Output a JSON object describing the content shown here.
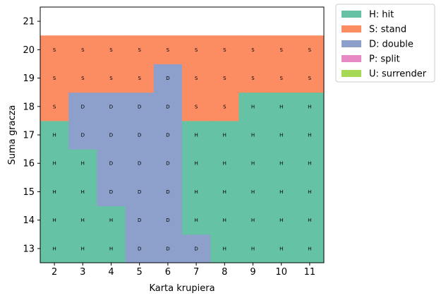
{
  "chart_data": {
    "type": "heatmap",
    "title": "",
    "xlabel": "Karta krupiera",
    "ylabel": "Suma gracza",
    "x": [
      2,
      3,
      4,
      5,
      6,
      7,
      8,
      9,
      10,
      11
    ],
    "y": [
      13,
      14,
      15,
      16,
      17,
      18,
      19,
      20
    ],
    "xlim": [
      1.5,
      11.5
    ],
    "ylim": [
      12.5,
      21.5
    ],
    "yticks": [
      13,
      14,
      15,
      16,
      17,
      18,
      19,
      20,
      21
    ],
    "grid": false,
    "legend_position": "outside-top-right",
    "legend": [
      {
        "code": "H",
        "label": "H: hit",
        "color": "#66c2a5"
      },
      {
        "code": "S",
        "label": "S: stand",
        "color": "#fc8d62"
      },
      {
        "code": "D",
        "label": "D: double",
        "color": "#8da0cb"
      },
      {
        "code": "P",
        "label": "P: split",
        "color": "#e78ac3"
      },
      {
        "code": "U",
        "label": "U: surrender",
        "color": "#a6d854"
      }
    ],
    "actions": [
      [
        "H",
        "H",
        "H",
        "D",
        "D",
        "D",
        "H",
        "H",
        "H",
        "H"
      ],
      [
        "H",
        "H",
        "H",
        "D",
        "D",
        "H",
        "H",
        "H",
        "H",
        "H"
      ],
      [
        "H",
        "H",
        "D",
        "D",
        "D",
        "H",
        "H",
        "H",
        "H",
        "H"
      ],
      [
        "H",
        "H",
        "D",
        "D",
        "D",
        "H",
        "H",
        "H",
        "H",
        "H"
      ],
      [
        "H",
        "D",
        "D",
        "D",
        "D",
        "H",
        "H",
        "H",
        "H",
        "H"
      ],
      [
        "S",
        "D",
        "D",
        "D",
        "D",
        "S",
        "S",
        "H",
        "H",
        "H"
      ],
      [
        "S",
        "S",
        "S",
        "S",
        "D",
        "S",
        "S",
        "S",
        "S",
        "S"
      ],
      [
        "S",
        "S",
        "S",
        "S",
        "S",
        "S",
        "S",
        "S",
        "S",
        "S"
      ]
    ]
  }
}
